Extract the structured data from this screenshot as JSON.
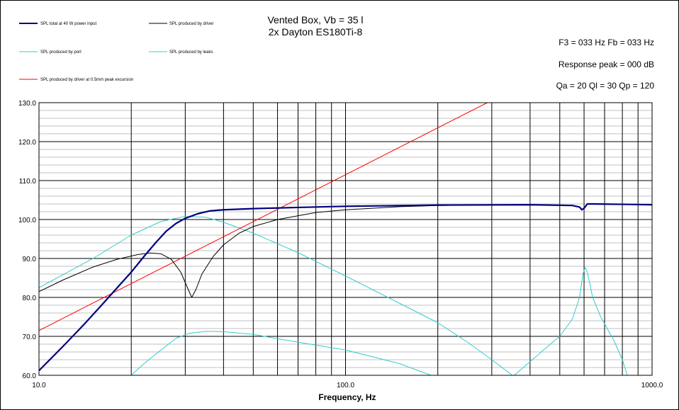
{
  "header": {
    "title_line1": "Vented Box, Vb = 35 l",
    "title_line2": "2x Dayton ES180Ti-8",
    "info_line1": "F3 = 033 Hz  Fb = 033 Hz",
    "info_line2": "Response peak = 000 dB",
    "info_line3": "Qa = 20  Ql = 30  Qp = 120"
  },
  "legend": {
    "total": "SPL total at 40 W power input",
    "driver": "SPL produced by driver",
    "port": "SPL produced by port",
    "leaks": "SPL produced by leaks",
    "excursion": "SPL produced by driver at 0.5mm peak excursion"
  },
  "colors": {
    "total": "#00007f",
    "driver": "#000000",
    "port": "#33cccc",
    "leaks": "#33cccc",
    "excursion": "#ff0000",
    "grid": "#000000"
  },
  "chart_data": {
    "type": "line",
    "xlabel": "Frequency, Hz",
    "ylabel": "",
    "xscale": "log",
    "xlim": [
      10,
      1000
    ],
    "ylim": [
      60,
      130
    ],
    "x_tick_labels": [
      "10.0",
      "100.0",
      "1000.0"
    ],
    "y_tick_labels": [
      "60.0",
      "70.0",
      "80.0",
      "90.0",
      "100.0",
      "110.0",
      "120.0",
      "130.0"
    ],
    "grid": true,
    "legend_position": "top-left",
    "series": [
      {
        "name": "SPL total at 40 W power input",
        "key": "total",
        "points": [
          [
            10,
            61.2
          ],
          [
            12,
            67.5
          ],
          [
            14,
            73
          ],
          [
            16,
            78
          ],
          [
            18,
            82.5
          ],
          [
            20,
            86.5
          ],
          [
            22,
            90.5
          ],
          [
            24,
            94
          ],
          [
            26,
            97
          ],
          [
            28,
            99
          ],
          [
            30,
            100.3
          ],
          [
            33,
            101.5
          ],
          [
            36,
            102.2
          ],
          [
            40,
            102.5
          ],
          [
            50,
            102.8
          ],
          [
            70,
            103.1
          ],
          [
            100,
            103.4
          ],
          [
            200,
            103.7
          ],
          [
            400,
            103.8
          ],
          [
            550,
            103.6
          ],
          [
            580,
            103.2
          ],
          [
            590,
            102.5
          ],
          [
            600,
            102.9
          ],
          [
            615,
            104
          ],
          [
            640,
            104
          ],
          [
            1000,
            103.8
          ]
        ]
      },
      {
        "name": "SPL produced by driver",
        "key": "driver",
        "points": [
          [
            10,
            81.5
          ],
          [
            12,
            84.5
          ],
          [
            15,
            87.8
          ],
          [
            18,
            89.8
          ],
          [
            21,
            91
          ],
          [
            23,
            91.4
          ],
          [
            25,
            91.2
          ],
          [
            27,
            89.8
          ],
          [
            29,
            86.5
          ],
          [
            30.5,
            82.5
          ],
          [
            31.5,
            80
          ],
          [
            32.5,
            82
          ],
          [
            34,
            86
          ],
          [
            37,
            90.5
          ],
          [
            40,
            93.5
          ],
          [
            45,
            96.5
          ],
          [
            50,
            98.2
          ],
          [
            60,
            100
          ],
          [
            80,
            101.8
          ],
          [
            100,
            102.5
          ],
          [
            150,
            103.3
          ],
          [
            200,
            103.6
          ],
          [
            400,
            103.8
          ],
          [
            550,
            103.6
          ],
          [
            580,
            103.2
          ],
          [
            590,
            102.5
          ],
          [
            600,
            102.9
          ],
          [
            615,
            104
          ],
          [
            640,
            104
          ],
          [
            1000,
            103.8
          ]
        ]
      },
      {
        "name": "SPL produced by port",
        "key": "port",
        "points": [
          [
            10,
            82.5
          ],
          [
            15,
            90
          ],
          [
            20,
            96
          ],
          [
            25,
            99.5
          ],
          [
            30,
            100.8
          ],
          [
            35,
            100.6
          ],
          [
            40,
            99.3
          ],
          [
            50,
            96.5
          ],
          [
            70,
            91.5
          ],
          [
            100,
            85.5
          ],
          [
            150,
            78.5
          ],
          [
            200,
            73.5
          ],
          [
            250,
            68.5
          ],
          [
            300,
            64
          ],
          [
            350,
            60
          ]
        ]
      },
      {
        "name": "SPL produced by leaks",
        "key": "leaks",
        "segments": [
          [
            [
              20,
              60
            ],
            [
              22,
              63
            ],
            [
              25,
              66.5
            ],
            [
              28,
              69.5
            ],
            [
              31,
              70.8
            ],
            [
              35,
              71.3
            ],
            [
              40,
              71.2
            ],
            [
              50,
              70.5
            ],
            [
              70,
              68.5
            ],
            [
              100,
              66.5
            ],
            [
              150,
              63
            ],
            [
              190,
              60
            ]
          ],
          [
            [
              355,
              60
            ],
            [
              400,
              63.5
            ],
            [
              450,
              67
            ],
            [
              500,
              70
            ],
            [
              550,
              74.5
            ],
            [
              580,
              80
            ],
            [
              595,
              86
            ],
            [
              605,
              87.7
            ],
            [
              615,
              86.5
            ],
            [
              640,
              80
            ],
            [
              680,
              75
            ],
            [
              750,
              69
            ],
            [
              800,
              64
            ],
            [
              830,
              60
            ]
          ]
        ]
      },
      {
        "name": "SPL produced by driver at 0.5mm peak excursion",
        "key": "excursion",
        "points": [
          [
            10,
            71.5
          ],
          [
            290,
            130
          ]
        ]
      }
    ]
  }
}
